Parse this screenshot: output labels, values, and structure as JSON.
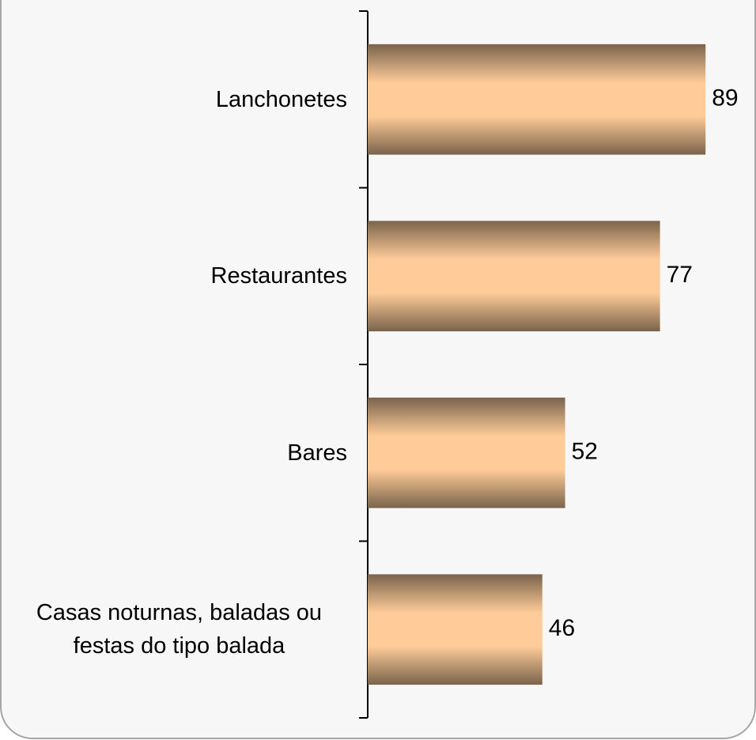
{
  "chart_data": {
    "type": "bar",
    "orientation": "horizontal",
    "categories": [
      "Lanchonetes",
      "Restaurantes",
      "Bares",
      "Casas noturnas, baladas ou festas do tipo balada"
    ],
    "values": [
      89,
      77,
      52,
      46
    ],
    "color": "#ffcc99",
    "xlim": [
      0,
      100
    ]
  }
}
